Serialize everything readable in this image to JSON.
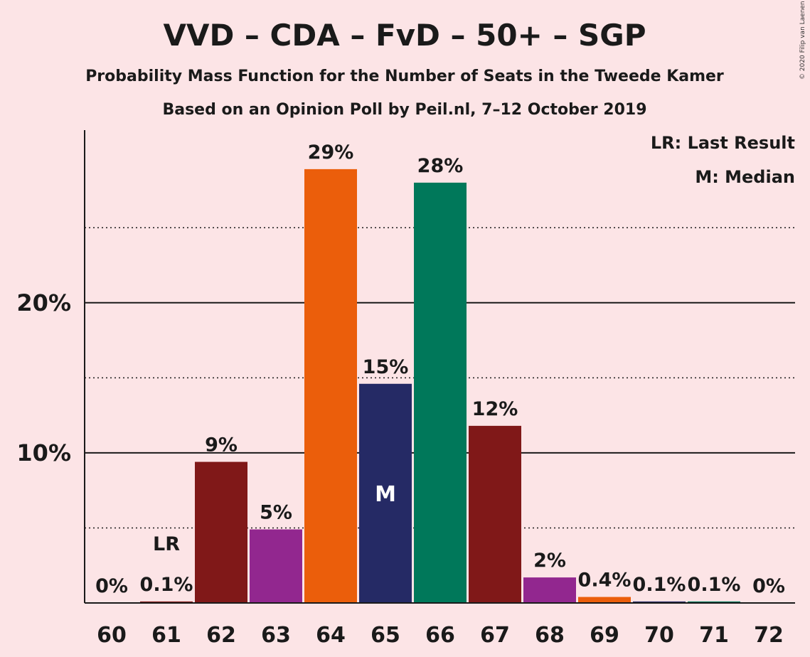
{
  "chart_data": {
    "type": "bar",
    "title": "VVD – CDA – FvD – 50+ – SGP",
    "subtitle": "Probability Mass Function for the Number of Seats in the Tweede Kamer",
    "subtitle2": "Based on an Opinion Poll by Peil.nl, 7–12 October 2019",
    "copyright": "© 2020 Filip van Laenen",
    "legend": [
      "LR: Last Result",
      "M: Median"
    ],
    "categories": [
      "60",
      "61",
      "62",
      "63",
      "64",
      "65",
      "66",
      "67",
      "68",
      "69",
      "70",
      "71",
      "72"
    ],
    "values": [
      0,
      0.1,
      9.4,
      4.9,
      28.9,
      14.6,
      28.0,
      11.8,
      1.7,
      0.4,
      0.1,
      0.1,
      0
    ],
    "data_labels": [
      "0%",
      "0.1%",
      "9%",
      "5%",
      "29%",
      "15%",
      "28%",
      "12%",
      "2%",
      "0.4%",
      "0.1%",
      "0.1%",
      "0%"
    ],
    "bar_colors": [
      "#801818",
      "#801818",
      "#801818",
      "#92278f",
      "#eb5e0b",
      "#252a65",
      "#00785a",
      "#801818",
      "#92278f",
      "#eb5e0b",
      "#252a65",
      "#00785a",
      "#801818"
    ],
    "ylim": [
      0,
      31.5
    ],
    "yticks": [
      {
        "value": 10,
        "label": "10%"
      },
      {
        "value": 20,
        "label": "20%"
      }
    ],
    "minor_gridlines": [
      5,
      15,
      25
    ],
    "last_result": {
      "category": "61",
      "label": "LR"
    },
    "median": {
      "category": "65",
      "label": "M"
    }
  }
}
